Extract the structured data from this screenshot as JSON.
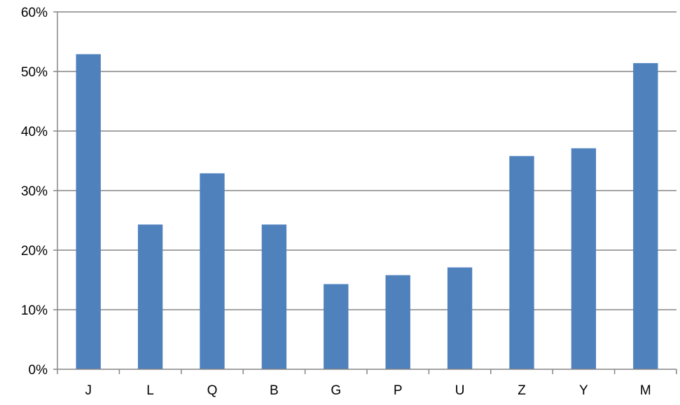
{
  "chart_data": {
    "type": "bar",
    "title": "",
    "xlabel": "",
    "ylabel": "",
    "categories": [
      "J",
      "L",
      "Q",
      "B",
      "G",
      "P",
      "U",
      "Z",
      "Y",
      "M"
    ],
    "values": [
      52.9,
      24.3,
      32.9,
      24.3,
      14.3,
      15.8,
      17.1,
      35.8,
      37.1,
      51.4
    ],
    "ylim": [
      0,
      60
    ],
    "y_ticks": [
      0,
      10,
      20,
      30,
      40,
      50,
      60
    ],
    "y_tick_labels": [
      "0%",
      "10%",
      "20%",
      "30%",
      "40%",
      "50%",
      "60%"
    ],
    "grid": true,
    "legend": "none",
    "bar_color": "#4F81BD"
  }
}
